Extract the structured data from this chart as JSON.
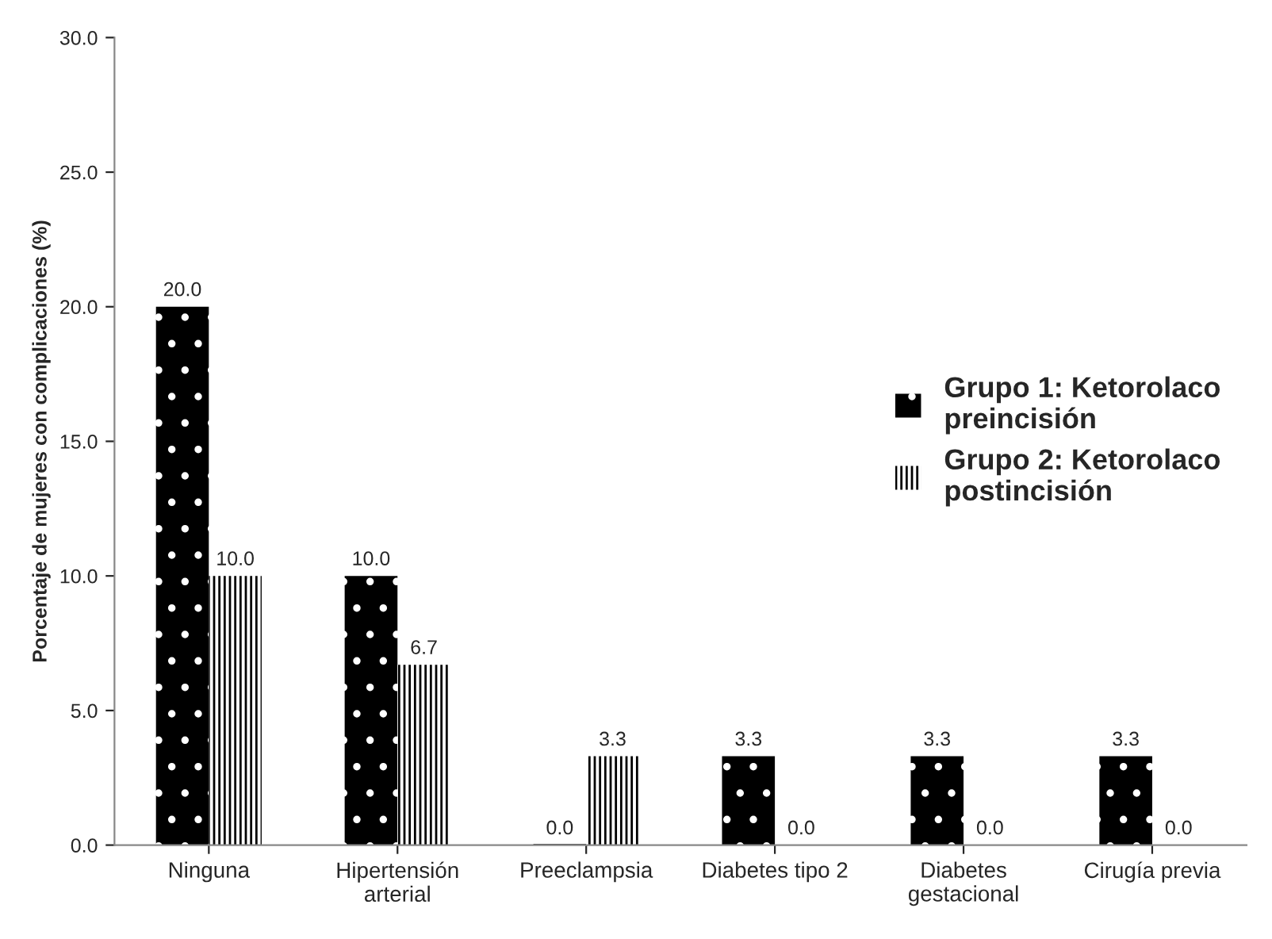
{
  "chart_data": {
    "type": "bar",
    "ylabel": "Porcentaje de mujeres con complicaciones (%)",
    "categories": [
      "Ninguna",
      "Hipertensión\narterial",
      "Preeclampsia",
      "Diabetes tipo 2",
      "Diabetes\ngestacional",
      "Cirugía previa"
    ],
    "series": [
      {
        "name": "Grupo 1: Ketorolaco\npreincisión",
        "color": "#000000",
        "values": [
          20.0,
          10.0,
          0.0,
          3.3,
          3.3,
          3.3
        ],
        "value_labels": [
          "20.0",
          "10.0",
          "0.0",
          "3.3",
          "3.3",
          "3.3"
        ]
      },
      {
        "name": "Grupo 2: Ketorolaco\npostincisión",
        "color": "#ffffff",
        "values": [
          10.0,
          6.7,
          3.3,
          0.0,
          0.0,
          0.0
        ],
        "value_labels": [
          "10.0",
          "6.7",
          "3.3",
          "0.0",
          "0.0",
          "0.0"
        ]
      }
    ],
    "ylim": [
      0,
      30
    ],
    "yticks": [
      {
        "value": 0,
        "label": "0.0"
      },
      {
        "value": 5,
        "label": "5.0"
      },
      {
        "value": 10,
        "label": "10.0"
      },
      {
        "value": 15,
        "label": "15.0"
      },
      {
        "value": 20,
        "label": "20.0"
      },
      {
        "value": 25,
        "label": "25.0"
      },
      {
        "value": 30,
        "label": "30.0"
      }
    ],
    "grid": false,
    "legend": "center right"
  }
}
